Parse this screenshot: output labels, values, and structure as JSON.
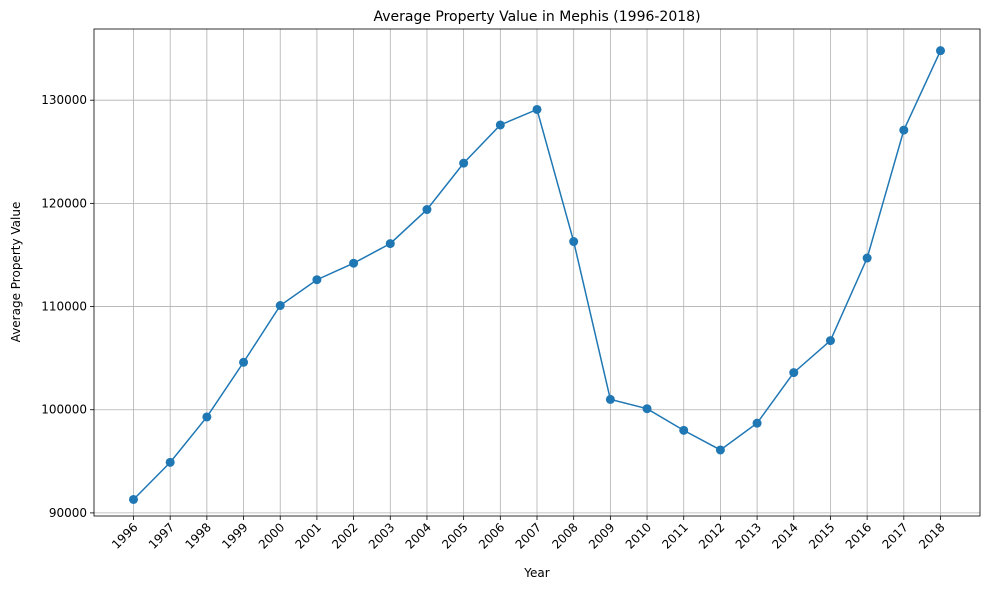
{
  "chart_data": {
    "type": "line",
    "title": "Average Property Value in Mephis (1996-2018)",
    "xlabel": "Year",
    "ylabel": "Average Property Value",
    "x": [
      "1996",
      "1997",
      "1998",
      "1999",
      "2000",
      "2001",
      "2002",
      "2003",
      "2004",
      "2005",
      "2006",
      "2007",
      "2008",
      "2009",
      "2010",
      "2011",
      "2012",
      "2013",
      "2014",
      "2015",
      "2016",
      "2017",
      "2018"
    ],
    "series": [
      {
        "values": [
          91300,
          94900,
          99300,
          104600,
          110100,
          112600,
          114200,
          116100,
          119400,
          123900,
          127600,
          129100,
          116300,
          101000,
          100100,
          98000,
          96100,
          98700,
          103600,
          106700,
          114700,
          127100,
          134800
        ],
        "color": "#1f77b4",
        "marker": "circle"
      }
    ],
    "yticks": [
      90000,
      100000,
      110000,
      120000,
      130000
    ],
    "ylim": [
      89700,
      136900
    ],
    "grid": true,
    "x_tick_rotation": 45
  }
}
